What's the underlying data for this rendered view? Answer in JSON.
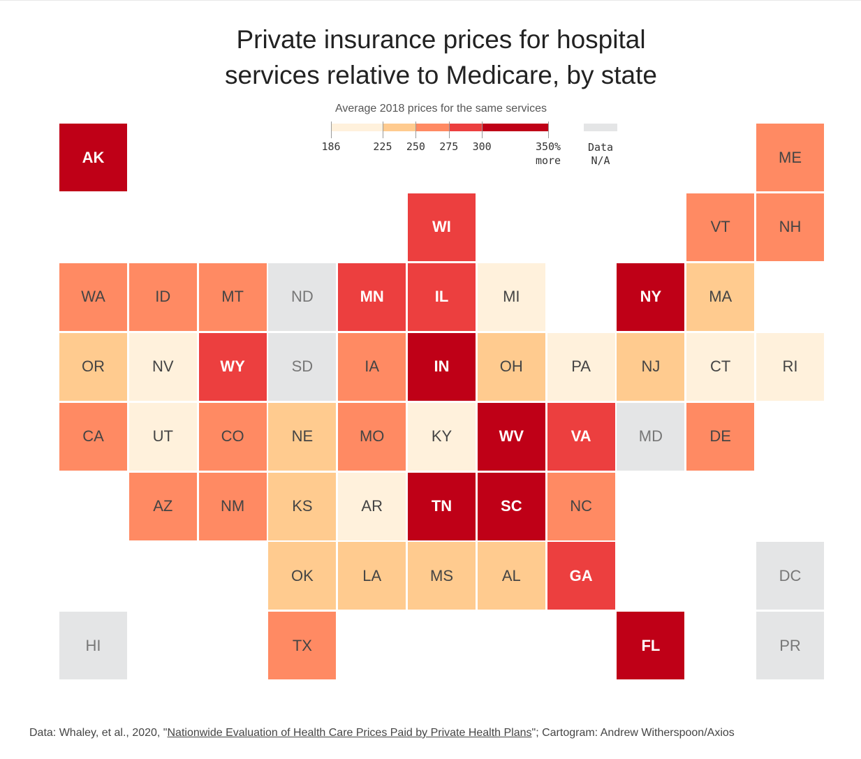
{
  "chart_data": {
    "type": "heatmap",
    "title": "Private insurance prices for hospital services relative to Medicare, by state",
    "subtitle": "Average 2018 prices for the same services",
    "legend": {
      "breaks": [
        186,
        225,
        250,
        275,
        300,
        350
      ],
      "tick_labels": [
        "186",
        "225",
        "250",
        "275",
        "300",
        "350%"
      ],
      "last_suffix": "more",
      "colors": [
        "#fff1dc",
        "#ffcb8f",
        "#ff8a63",
        "#ec3f3f",
        "#bf0017"
      ],
      "na_color": "#e4e5e6",
      "na_label_1": "Data",
      "na_label_2": "N/A",
      "placement": "top-center"
    },
    "states": [
      {
        "s": "AK",
        "row": 0,
        "col": 0,
        "bin": 5
      },
      {
        "s": "ME",
        "row": 0,
        "col": 10,
        "bin": 3
      },
      {
        "s": "WI",
        "row": 1,
        "col": 5,
        "bin": 4
      },
      {
        "s": "VT",
        "row": 1,
        "col": 9,
        "bin": 3
      },
      {
        "s": "NH",
        "row": 1,
        "col": 10,
        "bin": 3
      },
      {
        "s": "WA",
        "row": 2,
        "col": 0,
        "bin": 3
      },
      {
        "s": "ID",
        "row": 2,
        "col": 1,
        "bin": 3
      },
      {
        "s": "MT",
        "row": 2,
        "col": 2,
        "bin": 3
      },
      {
        "s": "ND",
        "row": 2,
        "col": 3,
        "bin": 0
      },
      {
        "s": "MN",
        "row": 2,
        "col": 4,
        "bin": 4
      },
      {
        "s": "IL",
        "row": 2,
        "col": 5,
        "bin": 4
      },
      {
        "s": "MI",
        "row": 2,
        "col": 6,
        "bin": 1
      },
      {
        "s": "NY",
        "row": 2,
        "col": 8,
        "bin": 5
      },
      {
        "s": "MA",
        "row": 2,
        "col": 9,
        "bin": 2
      },
      {
        "s": "OR",
        "row": 3,
        "col": 0,
        "bin": 2
      },
      {
        "s": "NV",
        "row": 3,
        "col": 1,
        "bin": 1
      },
      {
        "s": "WY",
        "row": 3,
        "col": 2,
        "bin": 4
      },
      {
        "s": "SD",
        "row": 3,
        "col": 3,
        "bin": 0
      },
      {
        "s": "IA",
        "row": 3,
        "col": 4,
        "bin": 3
      },
      {
        "s": "IN",
        "row": 3,
        "col": 5,
        "bin": 5
      },
      {
        "s": "OH",
        "row": 3,
        "col": 6,
        "bin": 2
      },
      {
        "s": "PA",
        "row": 3,
        "col": 7,
        "bin": 1
      },
      {
        "s": "NJ",
        "row": 3,
        "col": 8,
        "bin": 2
      },
      {
        "s": "CT",
        "row": 3,
        "col": 9,
        "bin": 1
      },
      {
        "s": "RI",
        "row": 3,
        "col": 10,
        "bin": 1
      },
      {
        "s": "CA",
        "row": 4,
        "col": 0,
        "bin": 3
      },
      {
        "s": "UT",
        "row": 4,
        "col": 1,
        "bin": 1
      },
      {
        "s": "CO",
        "row": 4,
        "col": 2,
        "bin": 3
      },
      {
        "s": "NE",
        "row": 4,
        "col": 3,
        "bin": 2
      },
      {
        "s": "MO",
        "row": 4,
        "col": 4,
        "bin": 3
      },
      {
        "s": "KY",
        "row": 4,
        "col": 5,
        "bin": 1
      },
      {
        "s": "WV",
        "row": 4,
        "col": 6,
        "bin": 5
      },
      {
        "s": "VA",
        "row": 4,
        "col": 7,
        "bin": 4
      },
      {
        "s": "MD",
        "row": 4,
        "col": 8,
        "bin": 0
      },
      {
        "s": "DE",
        "row": 4,
        "col": 9,
        "bin": 3
      },
      {
        "s": "AZ",
        "row": 5,
        "col": 1,
        "bin": 3
      },
      {
        "s": "NM",
        "row": 5,
        "col": 2,
        "bin": 3
      },
      {
        "s": "KS",
        "row": 5,
        "col": 3,
        "bin": 2
      },
      {
        "s": "AR",
        "row": 5,
        "col": 4,
        "bin": 1
      },
      {
        "s": "TN",
        "row": 5,
        "col": 5,
        "bin": 5
      },
      {
        "s": "SC",
        "row": 5,
        "col": 6,
        "bin": 5
      },
      {
        "s": "NC",
        "row": 5,
        "col": 7,
        "bin": 3
      },
      {
        "s": "OK",
        "row": 6,
        "col": 3,
        "bin": 2
      },
      {
        "s": "LA",
        "row": 6,
        "col": 4,
        "bin": 2
      },
      {
        "s": "MS",
        "row": 6,
        "col": 5,
        "bin": 2
      },
      {
        "s": "AL",
        "row": 6,
        "col": 6,
        "bin": 2
      },
      {
        "s": "GA",
        "row": 6,
        "col": 7,
        "bin": 4
      },
      {
        "s": "DC",
        "row": 6,
        "col": 10,
        "bin": 0
      },
      {
        "s": "HI",
        "row": 7,
        "col": 0,
        "bin": 0
      },
      {
        "s": "TX",
        "row": 7,
        "col": 3,
        "bin": 3
      },
      {
        "s": "FL",
        "row": 7,
        "col": 8,
        "bin": 5
      },
      {
        "s": "PR",
        "row": 7,
        "col": 10,
        "bin": 0
      }
    ]
  },
  "footer": {
    "prefix": "Data: Whaley, et al., 2020, \"",
    "link": "Nationwide Evaluation of Health Care Prices Paid by Private Health Plans",
    "suffix": "\"; Cartogram: Andrew Witherspoon/Axios"
  }
}
